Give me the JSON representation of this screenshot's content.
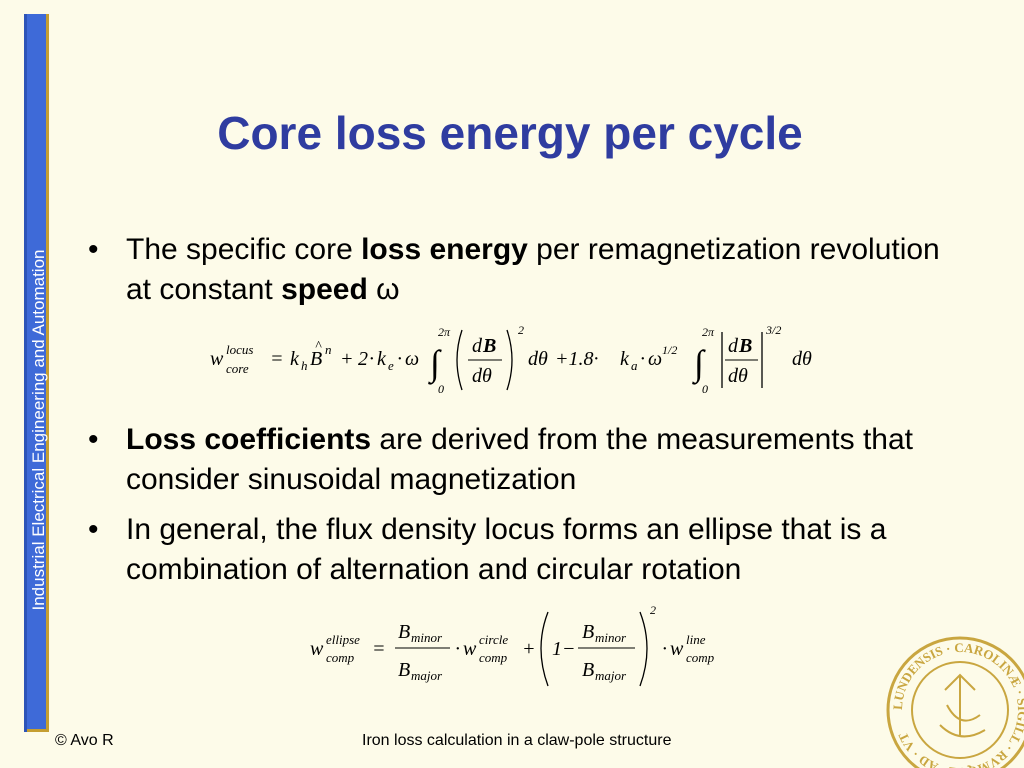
{
  "sidebar": {
    "text": "Industrial Electrical Engineering and Automation"
  },
  "slide": {
    "title": "Core loss energy per cycle"
  },
  "bullets": [
    {
      "segments": [
        "The specific core ",
        "loss energy",
        " per remagnetization revolution at constant ",
        "speed",
        " ω"
      ]
    },
    {
      "segments": [
        "Loss coefficients",
        " are derived from the measurements that consider sinusoidal magnetization"
      ]
    },
    {
      "segments": [
        "In general, the flux density locus forms an ellipse that is a combination of alternation and circular rotation"
      ]
    }
  ],
  "bullet_marker": "•",
  "equation1": {
    "w": "w",
    "sup": "locus",
    "sub": "core",
    "eq": "=",
    "k": "k",
    "h": "h",
    "B": "B",
    "hat": "^",
    "n": "n",
    "plus1": "+",
    "two": "2",
    "dot1": "·",
    "ke": "k",
    "e": "e",
    "dot2": "·",
    "omega": "ω",
    "int_top": "2π",
    "int_bot": "0",
    "int": "∫",
    "d": "d",
    "bold_B": "B",
    "dtheta": "dθ",
    "pow2": "2",
    "plus2": "+1.8·",
    "ka": "k",
    "a": "a",
    "dot3": "·",
    "omega2": "ω",
    "half": "1/2",
    "pow32": "3/2"
  },
  "equation2": {
    "w": "w",
    "sup1": "ellipse",
    "sub1": "comp",
    "eq": "=",
    "B": "B",
    "minor": "minor",
    "major": "major",
    "dot": "·",
    "sup2": "circle",
    "sub2": "comp",
    "plus": "+",
    "one_minus": "1−",
    "pow2": "2",
    "sup3": "line",
    "sub3": "comp"
  },
  "footer": {
    "left": "© Avo R",
    "center": "Iron loss calculation in a claw-pole structure"
  },
  "colors": {
    "title": "#2f3ca0",
    "sidebar": "#3e6ad8",
    "sidebar_border": "#c59e31",
    "background": "#fdfbe9"
  },
  "seal": {
    "ring_text": "LUNDENSIS · CAROLINÆ · SIGILL · RVMQUE · AD · VT",
    "motto": "AD VTRVMQVE"
  }
}
